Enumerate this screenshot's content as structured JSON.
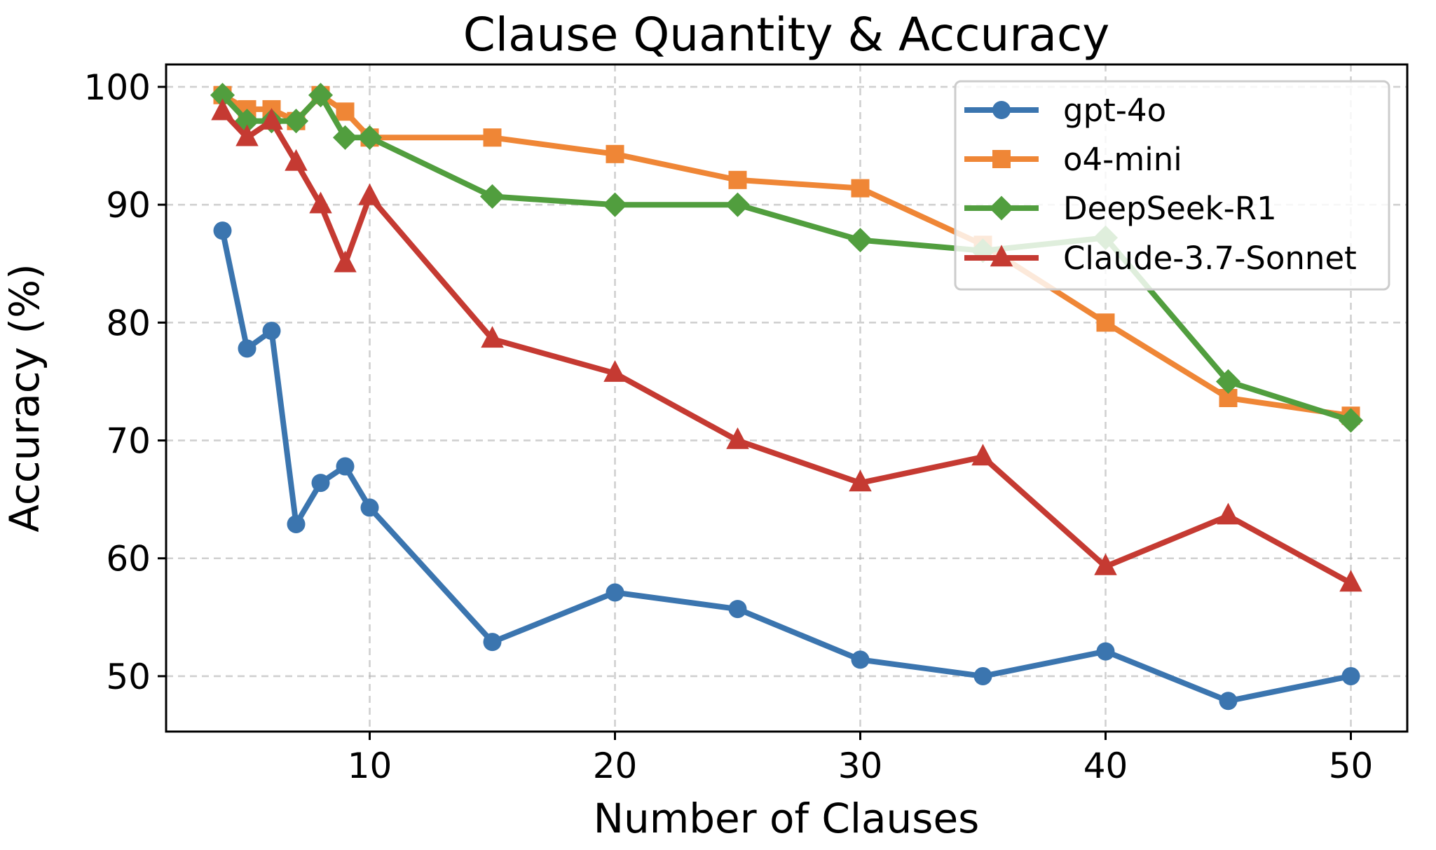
{
  "chart_data": {
    "type": "line",
    "title": "Clause Quantity & Accuracy",
    "xlabel": "Number of Clauses",
    "ylabel": "Accuracy (%)",
    "x": [
      4,
      5,
      6,
      7,
      8,
      9,
      10,
      15,
      20,
      25,
      30,
      35,
      40,
      45,
      50
    ],
    "xlim": [
      1.7,
      52.3
    ],
    "ylim": [
      45.3,
      101.9
    ],
    "xticks": [
      10,
      20,
      30,
      40,
      50
    ],
    "yticks": [
      50,
      60,
      70,
      80,
      90,
      100
    ],
    "grid": true,
    "grid_style": "dashed",
    "legend_position": "upper right",
    "series": [
      {
        "name": "gpt-4o",
        "color": "#3b75af",
        "marker": "circle",
        "values": [
          87.8,
          77.8,
          79.3,
          62.9,
          66.4,
          67.8,
          64.3,
          52.9,
          57.1,
          55.7,
          51.4,
          50.0,
          52.1,
          47.9,
          50.0
        ]
      },
      {
        "name": "o4-mini",
        "color": "#ef8636",
        "marker": "square",
        "values": [
          99.3,
          98.1,
          98.1,
          97.1,
          99.3,
          97.9,
          95.7,
          95.7,
          94.3,
          92.1,
          91.4,
          86.6,
          80.0,
          73.6,
          72.1
        ]
      },
      {
        "name": "DeepSeek-R1",
        "color": "#519e3e",
        "marker": "diamond",
        "values": [
          99.3,
          97.1,
          97.1,
          97.1,
          99.3,
          95.7,
          95.7,
          90.7,
          90.0,
          90.0,
          87.0,
          86.1,
          87.2,
          75.0,
          71.7
        ]
      },
      {
        "name": "Claude-3.7-Sonnet",
        "color": "#c53a32",
        "marker": "triangle-up",
        "values": [
          97.9,
          95.7,
          97.1,
          93.6,
          90.0,
          85.0,
          90.7,
          78.6,
          75.7,
          70.0,
          66.4,
          68.6,
          59.3,
          63.6,
          57.9
        ]
      }
    ]
  }
}
